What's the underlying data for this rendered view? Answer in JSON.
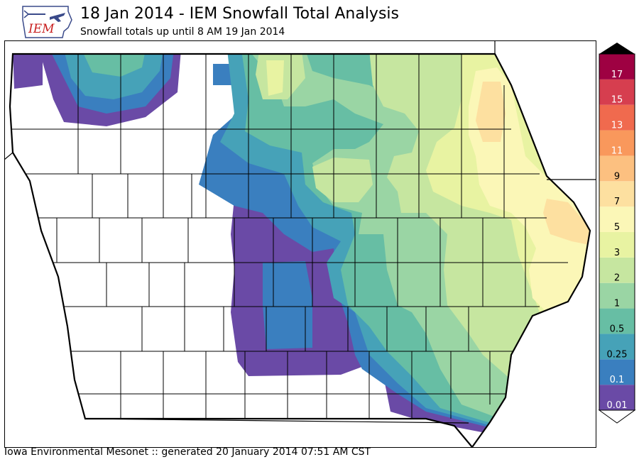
{
  "title": "18 Jan 2014 - IEM Snowfall Total Analysis",
  "subtitle": "Snowfall totals up until 8 AM 19 Jan 2014",
  "footer": "Iowa Environmental Mesonet :: generated 20 January 2014 07:51 AM CST",
  "logo": {
    "text": "IEM",
    "text_color": "#c81e1e",
    "outline_color": "#3a4a8a"
  },
  "legend": {
    "levels": [
      {
        "label": "0.01",
        "color": "#6a4aa6"
      },
      {
        "label": "0.1",
        "color": "#3a7fbf"
      },
      {
        "label": "0.25",
        "color": "#46a2b8"
      },
      {
        "label": "0.5",
        "color": "#67bea4"
      },
      {
        "label": "1",
        "color": "#9ad5a4"
      },
      {
        "label": "2",
        "color": "#c6e6a0"
      },
      {
        "label": "3",
        "color": "#e8f3a2"
      },
      {
        "label": "5",
        "color": "#fbf7b7"
      },
      {
        "label": "7",
        "color": "#fde0a0"
      },
      {
        "label": "9",
        "color": "#fcc080"
      },
      {
        "label": "11",
        "color": "#f9985c"
      },
      {
        "label": "13",
        "color": "#f06a4e"
      },
      {
        "label": "15",
        "color": "#d63e4f"
      },
      {
        "label": "17",
        "color": "#9e0142"
      }
    ]
  },
  "map": {
    "region": "Iowa",
    "counties_outlined": true,
    "state_border_color": "#000000"
  }
}
